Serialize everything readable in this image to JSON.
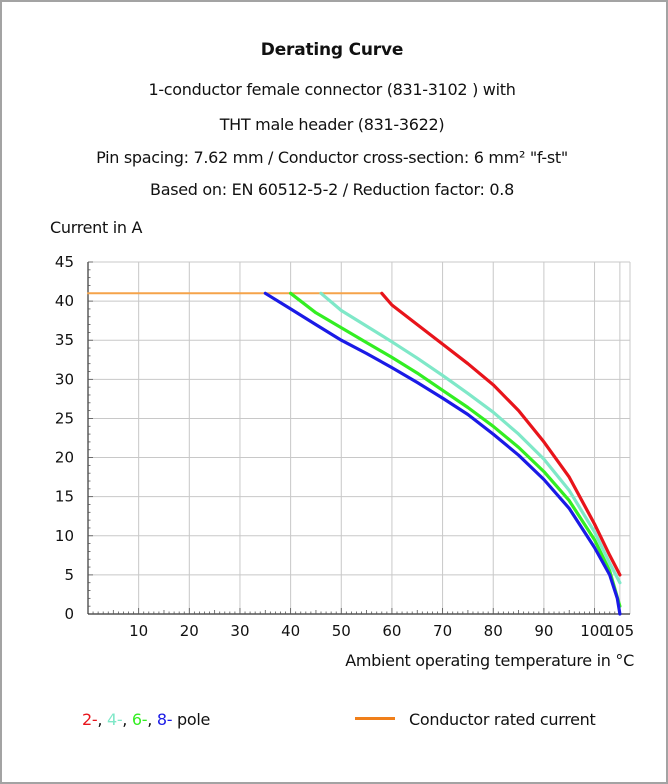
{
  "chart_data": {
    "type": "line",
    "title": "Derating Curve",
    "subtitle_lines": [
      "1-conductor female connector (831-3102 ) with",
      "THT male header (831-3622)",
      "Pin spacing: 7.62 mm / Conductor cross-section: 6 mm² \"f-st\"",
      "Based on: EN 60512-5-2 / Reduction factor: 0.8"
    ],
    "xlabel": "Ambient operating temperature in °C",
    "ylabel": "Current in A",
    "xlim": [
      0,
      107
    ],
    "ylim": [
      0,
      45
    ],
    "xticks": [
      10,
      20,
      30,
      40,
      50,
      60,
      70,
      80,
      90,
      100,
      105
    ],
    "yticks": [
      0,
      5,
      10,
      15,
      20,
      25,
      30,
      35,
      40,
      45
    ],
    "grid": true,
    "legend": {
      "placement": "bottom",
      "pole_prefix": [
        {
          "text": "2-",
          "color": "#e8141b"
        },
        {
          "text": "4-",
          "color": "#7fe8c8"
        },
        {
          "text": "6-",
          "color": "#33ee22"
        },
        {
          "text": "8-",
          "color": "#1a1ae6"
        }
      ],
      "pole_suffix": "pole",
      "rated_label": "Conductor rated current",
      "rated_color": "#f07f1a"
    },
    "series": [
      {
        "name": "Conductor rated current",
        "color": "#f5a34a",
        "x": [
          0,
          58
        ],
        "y": [
          41,
          41
        ]
      },
      {
        "name": "2-",
        "color": "#e8141b",
        "x": [
          58,
          60,
          65,
          70,
          75,
          80,
          85,
          90,
          95,
          100,
          103,
          105
        ],
        "y": [
          41,
          39.5,
          37,
          34.5,
          32,
          29.3,
          26,
          22,
          17.5,
          11.5,
          7.5,
          5
        ]
      },
      {
        "name": "4-",
        "color": "#7fe8c8",
        "x": [
          46,
          50,
          55,
          60,
          65,
          70,
          75,
          80,
          85,
          90,
          95,
          100,
          103,
          105
        ],
        "y": [
          41,
          38.8,
          36.8,
          34.8,
          32.7,
          30.5,
          28.2,
          25.8,
          23,
          19.8,
          15.8,
          10.5,
          6.5,
          4
        ]
      },
      {
        "name": "6-",
        "color": "#33ee22",
        "x": [
          40,
          45,
          50,
          55,
          60,
          65,
          70,
          75,
          80,
          85,
          90,
          95,
          100,
          103,
          105
        ],
        "y": [
          41,
          38.5,
          36.6,
          34.7,
          32.8,
          30.8,
          28.6,
          26.4,
          24,
          21.3,
          18.2,
          14.5,
          9.5,
          5.5,
          1
        ]
      },
      {
        "name": "8-",
        "color": "#1a1ae6",
        "x": [
          35,
          40,
          45,
          50,
          55,
          60,
          65,
          70,
          75,
          80,
          85,
          90,
          95,
          100,
          103,
          104.5,
          105
        ],
        "y": [
          41,
          39,
          37,
          35,
          33.3,
          31.5,
          29.6,
          27.6,
          25.5,
          23,
          20.3,
          17.2,
          13.5,
          8.5,
          5,
          2,
          0
        ]
      }
    ]
  }
}
